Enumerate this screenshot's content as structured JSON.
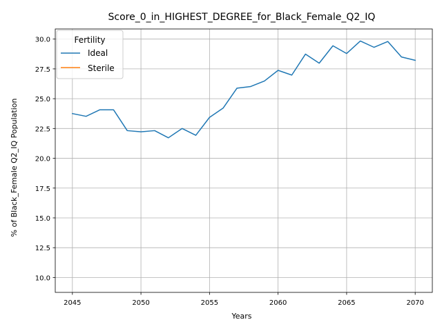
{
  "chart_data": {
    "type": "line",
    "title": "Score_0_in_HIGHEST_DEGREE_for_Black_Female_Q2_IQ",
    "xlabel": "Years",
    "ylabel": "% of Black_Female Q2_IQ Population",
    "xlim": [
      2043.75,
      2071.25
    ],
    "ylim": [
      8.75,
      30.85
    ],
    "x_ticks": [
      2045,
      2050,
      2055,
      2060,
      2065,
      2070
    ],
    "y_ticks": [
      10.0,
      12.5,
      15.0,
      17.5,
      20.0,
      22.5,
      25.0,
      27.5,
      30.0
    ],
    "x_tick_labels": [
      "2045",
      "2050",
      "2055",
      "2060",
      "2065",
      "2070"
    ],
    "y_tick_labels": [
      "10.0",
      "12.5",
      "15.0",
      "17.5",
      "20.0",
      "22.5",
      "25.0",
      "27.5",
      "30.0"
    ],
    "grid": true,
    "legend": {
      "title": "Fertility",
      "placement": "top-left"
    },
    "series": [
      {
        "name": "Ideal",
        "color": "#1f77b4",
        "x": [
          2045,
          2046,
          2047,
          2048,
          2049,
          2050,
          2051,
          2052,
          2053,
          2054,
          2055,
          2056,
          2057,
          2058,
          2059,
          2060,
          2061,
          2062,
          2063,
          2064,
          2065,
          2066,
          2067,
          2068,
          2069,
          2070
        ],
        "y": [
          23.75,
          23.52,
          24.07,
          24.07,
          22.32,
          22.22,
          22.32,
          21.72,
          22.5,
          21.93,
          23.43,
          24.22,
          25.88,
          26.02,
          26.48,
          27.38,
          26.98,
          28.74,
          27.98,
          29.44,
          28.79,
          29.84,
          29.31,
          29.8,
          28.5,
          28.22
        ]
      },
      {
        "name": "Sterile",
        "color": "#ff7f0e",
        "x": [],
        "y": []
      }
    ]
  }
}
